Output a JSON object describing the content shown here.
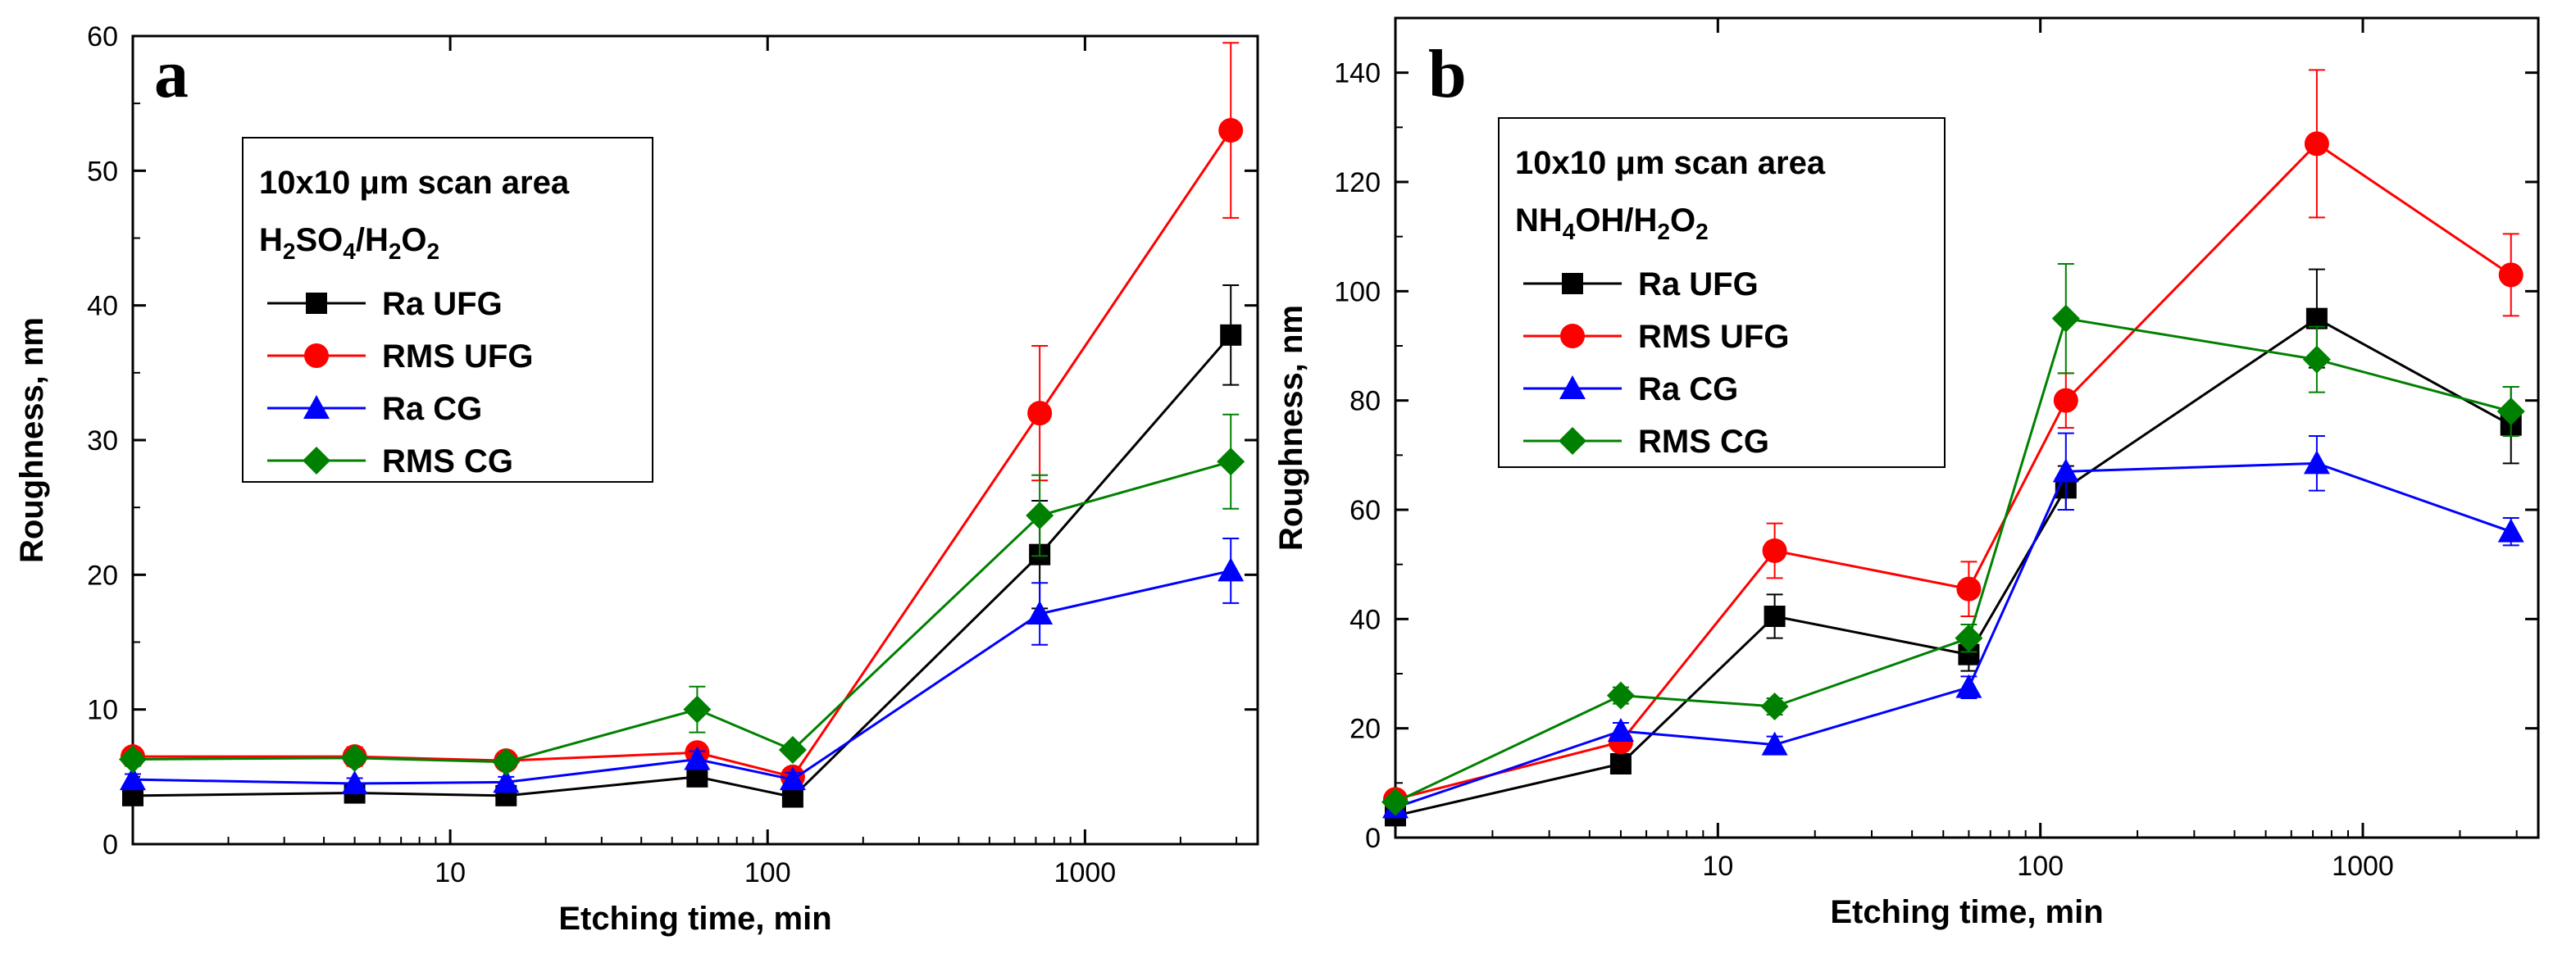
{
  "chart_data": [
    {
      "type": "line",
      "panel": "a",
      "title": "",
      "xlabel": "Etching time, min",
      "ylabel": "Roughness, nm",
      "xscale": "log",
      "xlim": [
        1,
        3500
      ],
      "ylim": [
        0,
        60
      ],
      "xticks": [
        10,
        100,
        1000
      ],
      "xtick_labels": [
        "10",
        "100",
        "1000"
      ],
      "yticks": [
        0,
        10,
        20,
        30,
        40,
        50,
        60
      ],
      "ytick_labels": [
        "0",
        "10",
        "20",
        "30",
        "40",
        "50",
        "60"
      ],
      "legend": {
        "title_line1": "10x10 μm scan area",
        "title_line2": [
          "H",
          "2",
          "SO",
          "4",
          "/H",
          "2",
          "O",
          "2"
        ],
        "placement": "upper-left"
      },
      "x": [
        1,
        5,
        15,
        60,
        120,
        720,
        2880
      ],
      "series": [
        {
          "name": "Ra UFG",
          "color": "#000000",
          "marker": "square",
          "values": [
            3.6,
            3.8,
            3.6,
            5.0,
            3.5,
            21.5,
            37.8
          ],
          "errors": [
            0.5,
            0.5,
            0.5,
            0.6,
            0.7,
            4.0,
            3.7
          ]
        },
        {
          "name": "RMS UFG",
          "color": "#ff0000",
          "marker": "circle",
          "values": [
            6.5,
            6.5,
            6.2,
            6.8,
            5.0,
            32.0,
            53.0
          ],
          "errors": [
            0.5,
            0.7,
            0.6,
            0.6,
            0.5,
            5.0,
            6.5
          ]
        },
        {
          "name": "Ra CG",
          "color": "#0000ff",
          "marker": "triangle",
          "values": [
            4.8,
            4.5,
            4.6,
            6.3,
            4.8,
            17.1,
            20.3
          ],
          "errors": [
            0.4,
            0.4,
            0.4,
            0.6,
            0.5,
            2.3,
            2.4
          ]
        },
        {
          "name": "RMS CG",
          "color": "#008000",
          "marker": "diamond",
          "values": [
            6.3,
            6.4,
            6.1,
            10.0,
            7.0,
            24.4,
            28.4
          ],
          "errors": [
            0.5,
            0.5,
            0.5,
            1.7,
            0.4,
            3.0,
            3.5
          ]
        }
      ]
    },
    {
      "type": "line",
      "panel": "b",
      "title": "",
      "xlabel": "Etching time, min",
      "ylabel": "Roughness, nm",
      "xscale": "log",
      "xlim": [
        1,
        3500
      ],
      "ylim": [
        0,
        150
      ],
      "xticks": [
        10,
        100,
        1000
      ],
      "xtick_labels": [
        "10",
        "100",
        "1000"
      ],
      "yticks": [
        0,
        20,
        40,
        60,
        80,
        100,
        120,
        140
      ],
      "ytick_labels": [
        "0",
        "20",
        "40",
        "60",
        "80",
        "100",
        "120",
        "140"
      ],
      "legend": {
        "title_line1": "10x10 μm scan area",
        "title_line2": [
          "NH",
          "",
          "4",
          "OH/H",
          "2",
          "O",
          "2"
        ],
        "placement": "upper-left"
      },
      "x": [
        1,
        5,
        15,
        60,
        120,
        720,
        2880
      ],
      "series": [
        {
          "name": "Ra UFG",
          "color": "#000000",
          "marker": "square",
          "values": [
            4.0,
            13.5,
            40.5,
            33.5,
            64.0,
            95.0,
            75.5
          ],
          "errors": [
            1.0,
            1.5,
            4.0,
            3.0,
            4.0,
            9.0,
            7.0
          ]
        },
        {
          "name": "RMS UFG",
          "color": "#ff0000",
          "marker": "circle",
          "values": [
            7.0,
            17.5,
            52.5,
            45.5,
            80.0,
            127.0,
            103.0
          ],
          "errors": [
            1.0,
            1.5,
            5.0,
            5.0,
            5.0,
            13.5,
            7.5
          ]
        },
        {
          "name": "Ra CG",
          "color": "#0000ff",
          "marker": "triangle",
          "values": [
            5.5,
            19.5,
            17.0,
            27.5,
            67.0,
            68.5,
            56.0
          ],
          "errors": [
            1.0,
            1.5,
            1.5,
            2.0,
            7.0,
            5.0,
            2.5
          ]
        },
        {
          "name": "RMS CG",
          "color": "#008000",
          "marker": "diamond",
          "values": [
            6.5,
            26.0,
            24.0,
            36.5,
            95.0,
            87.5,
            78.0
          ],
          "errors": [
            1.0,
            1.5,
            1.5,
            2.5,
            10.0,
            6.0,
            4.5
          ]
        }
      ]
    }
  ]
}
